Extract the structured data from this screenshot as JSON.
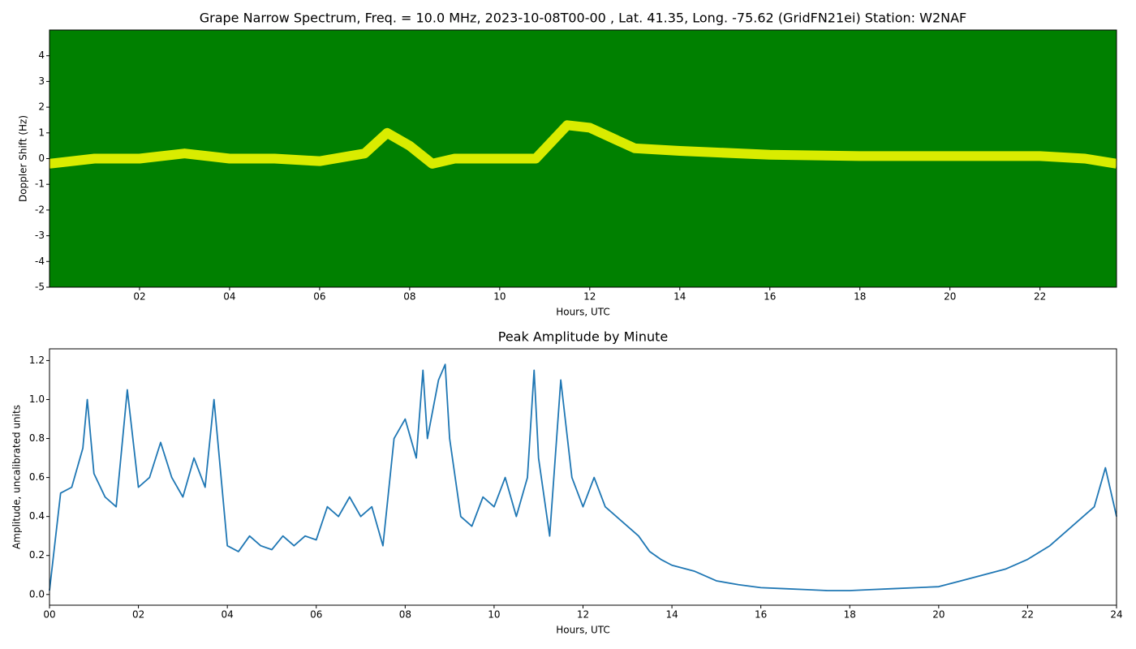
{
  "chart_data": [
    {
      "type": "spectrogram",
      "title": "Grape Narrow Spectrum, Freq. = 10.0 MHz, 2023-10-08T00-00 , Lat.  41.35, Long. -75.62 (GridFN21ei) Station: W2NAF",
      "xlabel": "Hours, UTC",
      "ylabel": "Doppler Shift (Hz)",
      "background": "#008000",
      "color": "#ffff00",
      "x": [
        0,
        1,
        2,
        3,
        4,
        5,
        6,
        7,
        7.5,
        8,
        8.5,
        9,
        10,
        10.8,
        11.5,
        12,
        12.5,
        13,
        14,
        16,
        18,
        20,
        22,
        23,
        23.7
      ],
      "values": [
        -0.2,
        0,
        0,
        0.2,
        0,
        0,
        -0.1,
        0.2,
        1.0,
        0.5,
        -0.2,
        0,
        0,
        0,
        1.3,
        1.2,
        0.8,
        0.4,
        0.3,
        0.15,
        0.1,
        0.1,
        0.1,
        0,
        -0.2
      ],
      "xlim": [
        0,
        23.7
      ],
      "ylim": [
        -5,
        5
      ],
      "xticks": [
        {
          "value": 2,
          "label": "02"
        },
        {
          "value": 4,
          "label": "04"
        },
        {
          "value": 6,
          "label": "06"
        },
        {
          "value": 8,
          "label": "08"
        },
        {
          "value": 10,
          "label": "10"
        },
        {
          "value": 12,
          "label": "12"
        },
        {
          "value": 14,
          "label": "14"
        },
        {
          "value": 16,
          "label": "16"
        },
        {
          "value": 18,
          "label": "18"
        },
        {
          "value": 20,
          "label": "20"
        },
        {
          "value": 22,
          "label": "22"
        }
      ],
      "yticks": [
        -5,
        -4,
        -3,
        -2,
        -1,
        0,
        1,
        2,
        3,
        4
      ]
    },
    {
      "type": "line",
      "title": "Peak Amplitude by Minute",
      "xlabel": "Hours, UTC",
      "ylabel": "Amplitude, uncalibrated units",
      "color": "#1f77b4",
      "x": [
        0,
        0.25,
        0.5,
        0.75,
        0.85,
        1.0,
        1.25,
        1.5,
        1.75,
        2.0,
        2.25,
        2.5,
        2.75,
        3.0,
        3.25,
        3.5,
        3.7,
        4.0,
        4.25,
        4.5,
        4.75,
        5.0,
        5.25,
        5.5,
        5.75,
        6.0,
        6.25,
        6.5,
        6.75,
        7.0,
        7.25,
        7.5,
        7.75,
        8.0,
        8.25,
        8.4,
        8.5,
        8.75,
        8.9,
        9.0,
        9.25,
        9.5,
        9.75,
        10.0,
        10.25,
        10.5,
        10.75,
        10.9,
        11.0,
        11.25,
        11.5,
        11.75,
        12.0,
        12.25,
        12.5,
        12.75,
        13.0,
        13.25,
        13.5,
        13.75,
        14.0,
        14.5,
        15.0,
        15.5,
        16.0,
        16.5,
        17.0,
        17.5,
        18.0,
        18.5,
        19.0,
        19.5,
        20.0,
        20.5,
        21.0,
        21.5,
        22.0,
        22.5,
        23.0,
        23.5,
        23.75,
        24.0
      ],
      "values": [
        0.02,
        0.52,
        0.55,
        0.75,
        1.0,
        0.62,
        0.5,
        0.45,
        1.05,
        0.55,
        0.6,
        0.78,
        0.6,
        0.5,
        0.7,
        0.55,
        1.0,
        0.25,
        0.22,
        0.3,
        0.25,
        0.23,
        0.3,
        0.25,
        0.3,
        0.28,
        0.45,
        0.4,
        0.5,
        0.4,
        0.45,
        0.25,
        0.8,
        0.9,
        0.7,
        1.15,
        0.8,
        1.1,
        1.18,
        0.8,
        0.4,
        0.35,
        0.5,
        0.45,
        0.6,
        0.4,
        0.6,
        1.15,
        0.7,
        0.3,
        1.1,
        0.6,
        0.45,
        0.6,
        0.45,
        0.4,
        0.35,
        0.3,
        0.22,
        0.18,
        0.15,
        0.12,
        0.07,
        0.05,
        0.035,
        0.03,
        0.025,
        0.02,
        0.02,
        0.025,
        0.03,
        0.035,
        0.04,
        0.07,
        0.1,
        0.13,
        0.18,
        0.25,
        0.35,
        0.45,
        0.65,
        0.4
      ],
      "xlim": [
        0,
        24
      ],
      "ylim": [
        -0.055,
        1.26
      ],
      "xticks": [
        {
          "value": 0,
          "label": "00"
        },
        {
          "value": 2,
          "label": "02"
        },
        {
          "value": 4,
          "label": "04"
        },
        {
          "value": 6,
          "label": "06"
        },
        {
          "value": 8,
          "label": "08"
        },
        {
          "value": 10,
          "label": "10"
        },
        {
          "value": 12,
          "label": "12"
        },
        {
          "value": 14,
          "label": "14"
        },
        {
          "value": 16,
          "label": "16"
        },
        {
          "value": 18,
          "label": "18"
        },
        {
          "value": 20,
          "label": "20"
        },
        {
          "value": 22,
          "label": "22"
        },
        24
      ],
      "yticks": [
        {
          "value": 0,
          "label": "0.0"
        },
        0.2,
        0.4,
        0.6,
        0.8,
        {
          "value": 1,
          "label": "1.0"
        },
        1.2
      ]
    }
  ]
}
